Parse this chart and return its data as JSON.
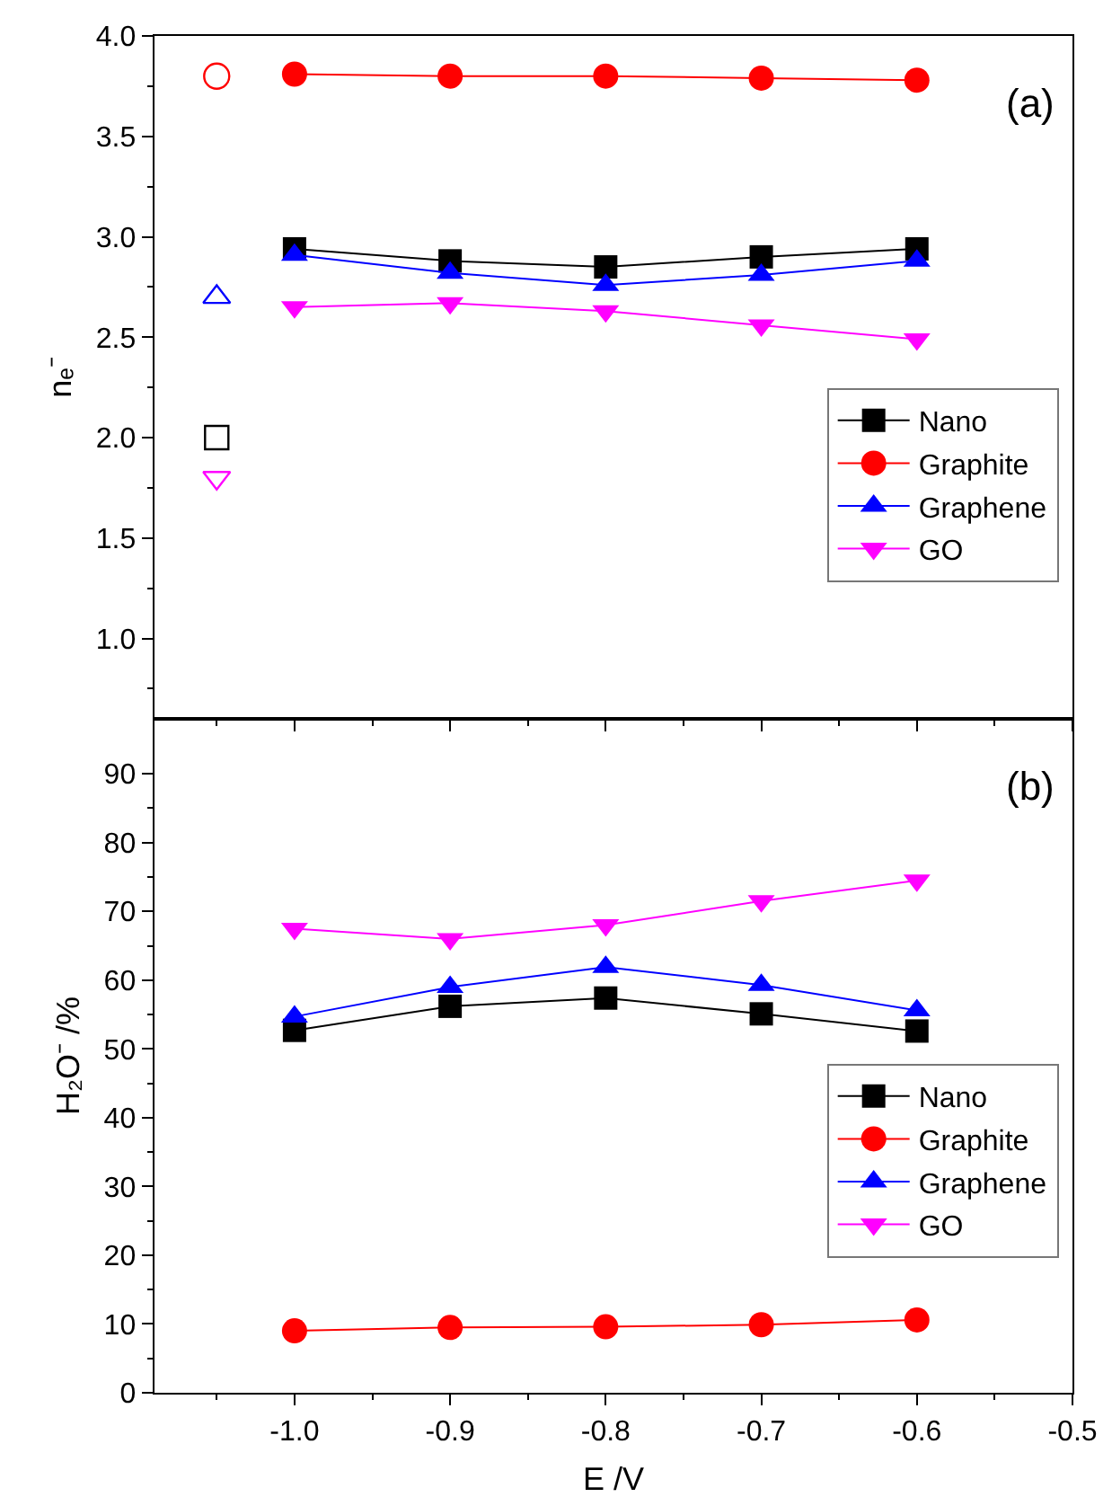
{
  "chart_data": [
    {
      "type": "line",
      "ylabel": "nₑ⁻",
      "annotations": [
        "(a)"
      ],
      "xlim": [
        -1.09,
        -0.5
      ],
      "xticks": [
        -1,
        -0.9,
        -0.8,
        -0.7,
        -0.6,
        -0.5
      ],
      "ylim": [
        0.6,
        4.0
      ],
      "yticks": [
        {
          "value": 1,
          "label": "1.0"
        },
        1.5,
        {
          "value": 2,
          "label": "2.0"
        },
        2.5,
        {
          "value": 3,
          "label": "3.0"
        },
        3.5,
        {
          "value": 4,
          "label": "4.0"
        }
      ],
      "tick_labels": "y",
      "legend": "bottom right",
      "series": [
        {
          "name": "Nano",
          "color": "#000000",
          "marker": "square",
          "x": [
            -1.0,
            -0.9,
            -0.8,
            -0.7,
            -0.6
          ],
          "values": [
            2.94,
            2.88,
            2.85,
            2.9,
            2.94
          ]
        },
        {
          "name": "Graphite",
          "color": "#ff0000",
          "marker": "circle",
          "x": [
            -1.0,
            -0.9,
            -0.8,
            -0.7,
            -0.6
          ],
          "values": [
            3.81,
            3.8,
            3.8,
            3.79,
            3.78
          ]
        },
        {
          "name": "Graphene",
          "color": "#0000ff",
          "marker": "triangle",
          "x": [
            -1.0,
            -0.9,
            -0.8,
            -0.7,
            -0.6
          ],
          "values": [
            2.91,
            2.82,
            2.76,
            2.81,
            2.88
          ]
        },
        {
          "name": "GO",
          "color": "#ff00ff",
          "marker": "triangle-down",
          "x": [
            -1.0,
            -0.9,
            -0.8,
            -0.7,
            -0.6
          ],
          "values": [
            2.65,
            2.67,
            2.63,
            2.56,
            2.49
          ]
        },
        {
          "type": "scatter",
          "color": "#000000",
          "marker": "square-open",
          "x": [
            -1.05
          ],
          "values": [
            2.0
          ]
        },
        {
          "type": "scatter",
          "color": "#ff0000",
          "marker": "circle-open",
          "x": [
            -1.05
          ],
          "values": [
            3.8
          ]
        },
        {
          "type": "scatter",
          "color": "#0000ff",
          "marker": "triangle-open",
          "x": [
            -1.05
          ],
          "values": [
            2.7
          ]
        },
        {
          "type": "scatter",
          "color": "#ff00ff",
          "marker": "triangle-down-open",
          "x": [
            -1.05
          ],
          "values": [
            1.8
          ]
        }
      ]
    },
    {
      "type": "line",
      "xlabel": "E /V",
      "ylabel": "H₂O⁻ /%",
      "annotations": [
        "(b)"
      ],
      "xlim": [
        -1.09,
        -0.5
      ],
      "xticks": [
        {
          "value": -1,
          "label": "-1.0"
        },
        -0.9,
        -0.8,
        -0.7,
        -0.6,
        -0.5
      ],
      "ylim": [
        0,
        98
      ],
      "yticks": [
        0,
        10,
        20,
        30,
        40,
        50,
        60,
        70,
        80,
        90
      ],
      "legend": "bottom right",
      "series": [
        {
          "name": "Nano",
          "color": "#000000",
          "marker": "square",
          "x": [
            -1.0,
            -0.9,
            -0.8,
            -0.7,
            -0.6
          ],
          "values": [
            52.7,
            56.2,
            57.4,
            55.1,
            52.6
          ]
        },
        {
          "name": "Graphite",
          "color": "#ff0000",
          "marker": "circle",
          "x": [
            -1.0,
            -0.9,
            -0.8,
            -0.7,
            -0.6
          ],
          "values": [
            9.0,
            9.5,
            9.6,
            9.9,
            10.6
          ]
        },
        {
          "name": "Graphene",
          "color": "#0000ff",
          "marker": "triangle",
          "x": [
            -1.0,
            -0.9,
            -0.8,
            -0.7,
            -0.6
          ],
          "values": [
            54.7,
            59.0,
            61.9,
            59.3,
            55.6
          ]
        },
        {
          "name": "GO",
          "color": "#ff00ff",
          "marker": "triangle-down",
          "x": [
            -1.0,
            -0.9,
            -0.8,
            -0.7,
            -0.6
          ],
          "values": [
            67.5,
            66.0,
            68.0,
            71.5,
            74.5
          ]
        }
      ]
    }
  ]
}
